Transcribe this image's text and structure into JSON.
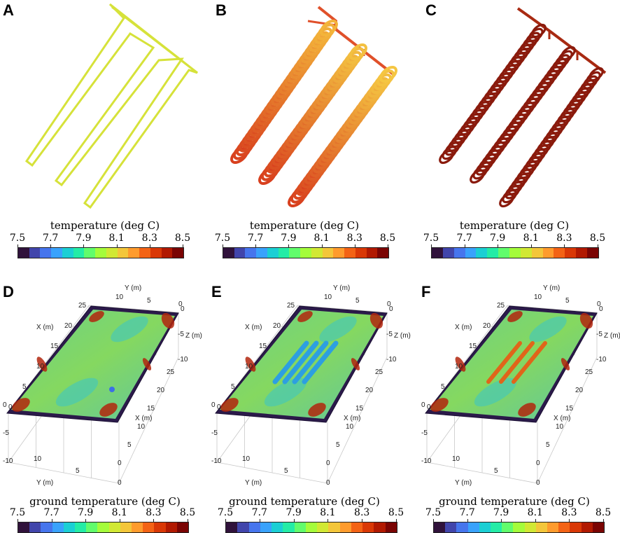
{
  "panels": [
    {
      "letter": "A",
      "colorbar_title": "temperature (deg C)"
    },
    {
      "letter": "B",
      "colorbar_title": "temperature (deg C)"
    },
    {
      "letter": "C",
      "colorbar_title": "temperature (deg C)"
    },
    {
      "letter": "D",
      "colorbar_title": "ground temperature (deg C)"
    },
    {
      "letter": "E",
      "colorbar_title": "ground temperature (deg C)"
    },
    {
      "letter": "F",
      "colorbar_title": "ground temperature (deg C)"
    }
  ],
  "colorbar_ticks": [
    "7.5",
    "7.7",
    "7.9",
    "8.1",
    "8.3",
    "8.5"
  ],
  "colormap": [
    "#30123b",
    "#4145ab",
    "#4675ed",
    "#39a2fc",
    "#1bcfd4",
    "#24eca6",
    "#61fc6c",
    "#a4fc3b",
    "#d1e834",
    "#f3c63a",
    "#fe9b2d",
    "#f36315",
    "#d93806",
    "#b11901",
    "#7a0403"
  ],
  "pipe_colors": {
    "A": "#d6e23a",
    "B_manifold": "#e0502a",
    "B_coil": "#f08a2a",
    "C": "#8a1a0c"
  },
  "axis_labels": {
    "y_top": "Y (m)",
    "x_left": "X (m)",
    "z_right": "Z (m)",
    "x_right": "X (m)",
    "y_bottom": "Y (m)",
    "y_top_ticks": [
      "10",
      "5",
      "0"
    ],
    "x_left_ticks": [
      "25",
      "20",
      "15",
      "10",
      "5",
      "0"
    ],
    "z_ticks": [
      "0",
      "-5",
      "-10"
    ],
    "x_right_ticks": [
      "25",
      "20",
      "15",
      "10",
      "5",
      "0"
    ],
    "y_bottom_ticks": [
      "10",
      "5",
      "0"
    ],
    "z_left_ticks": [
      "0",
      "-5",
      "-10"
    ]
  }
}
